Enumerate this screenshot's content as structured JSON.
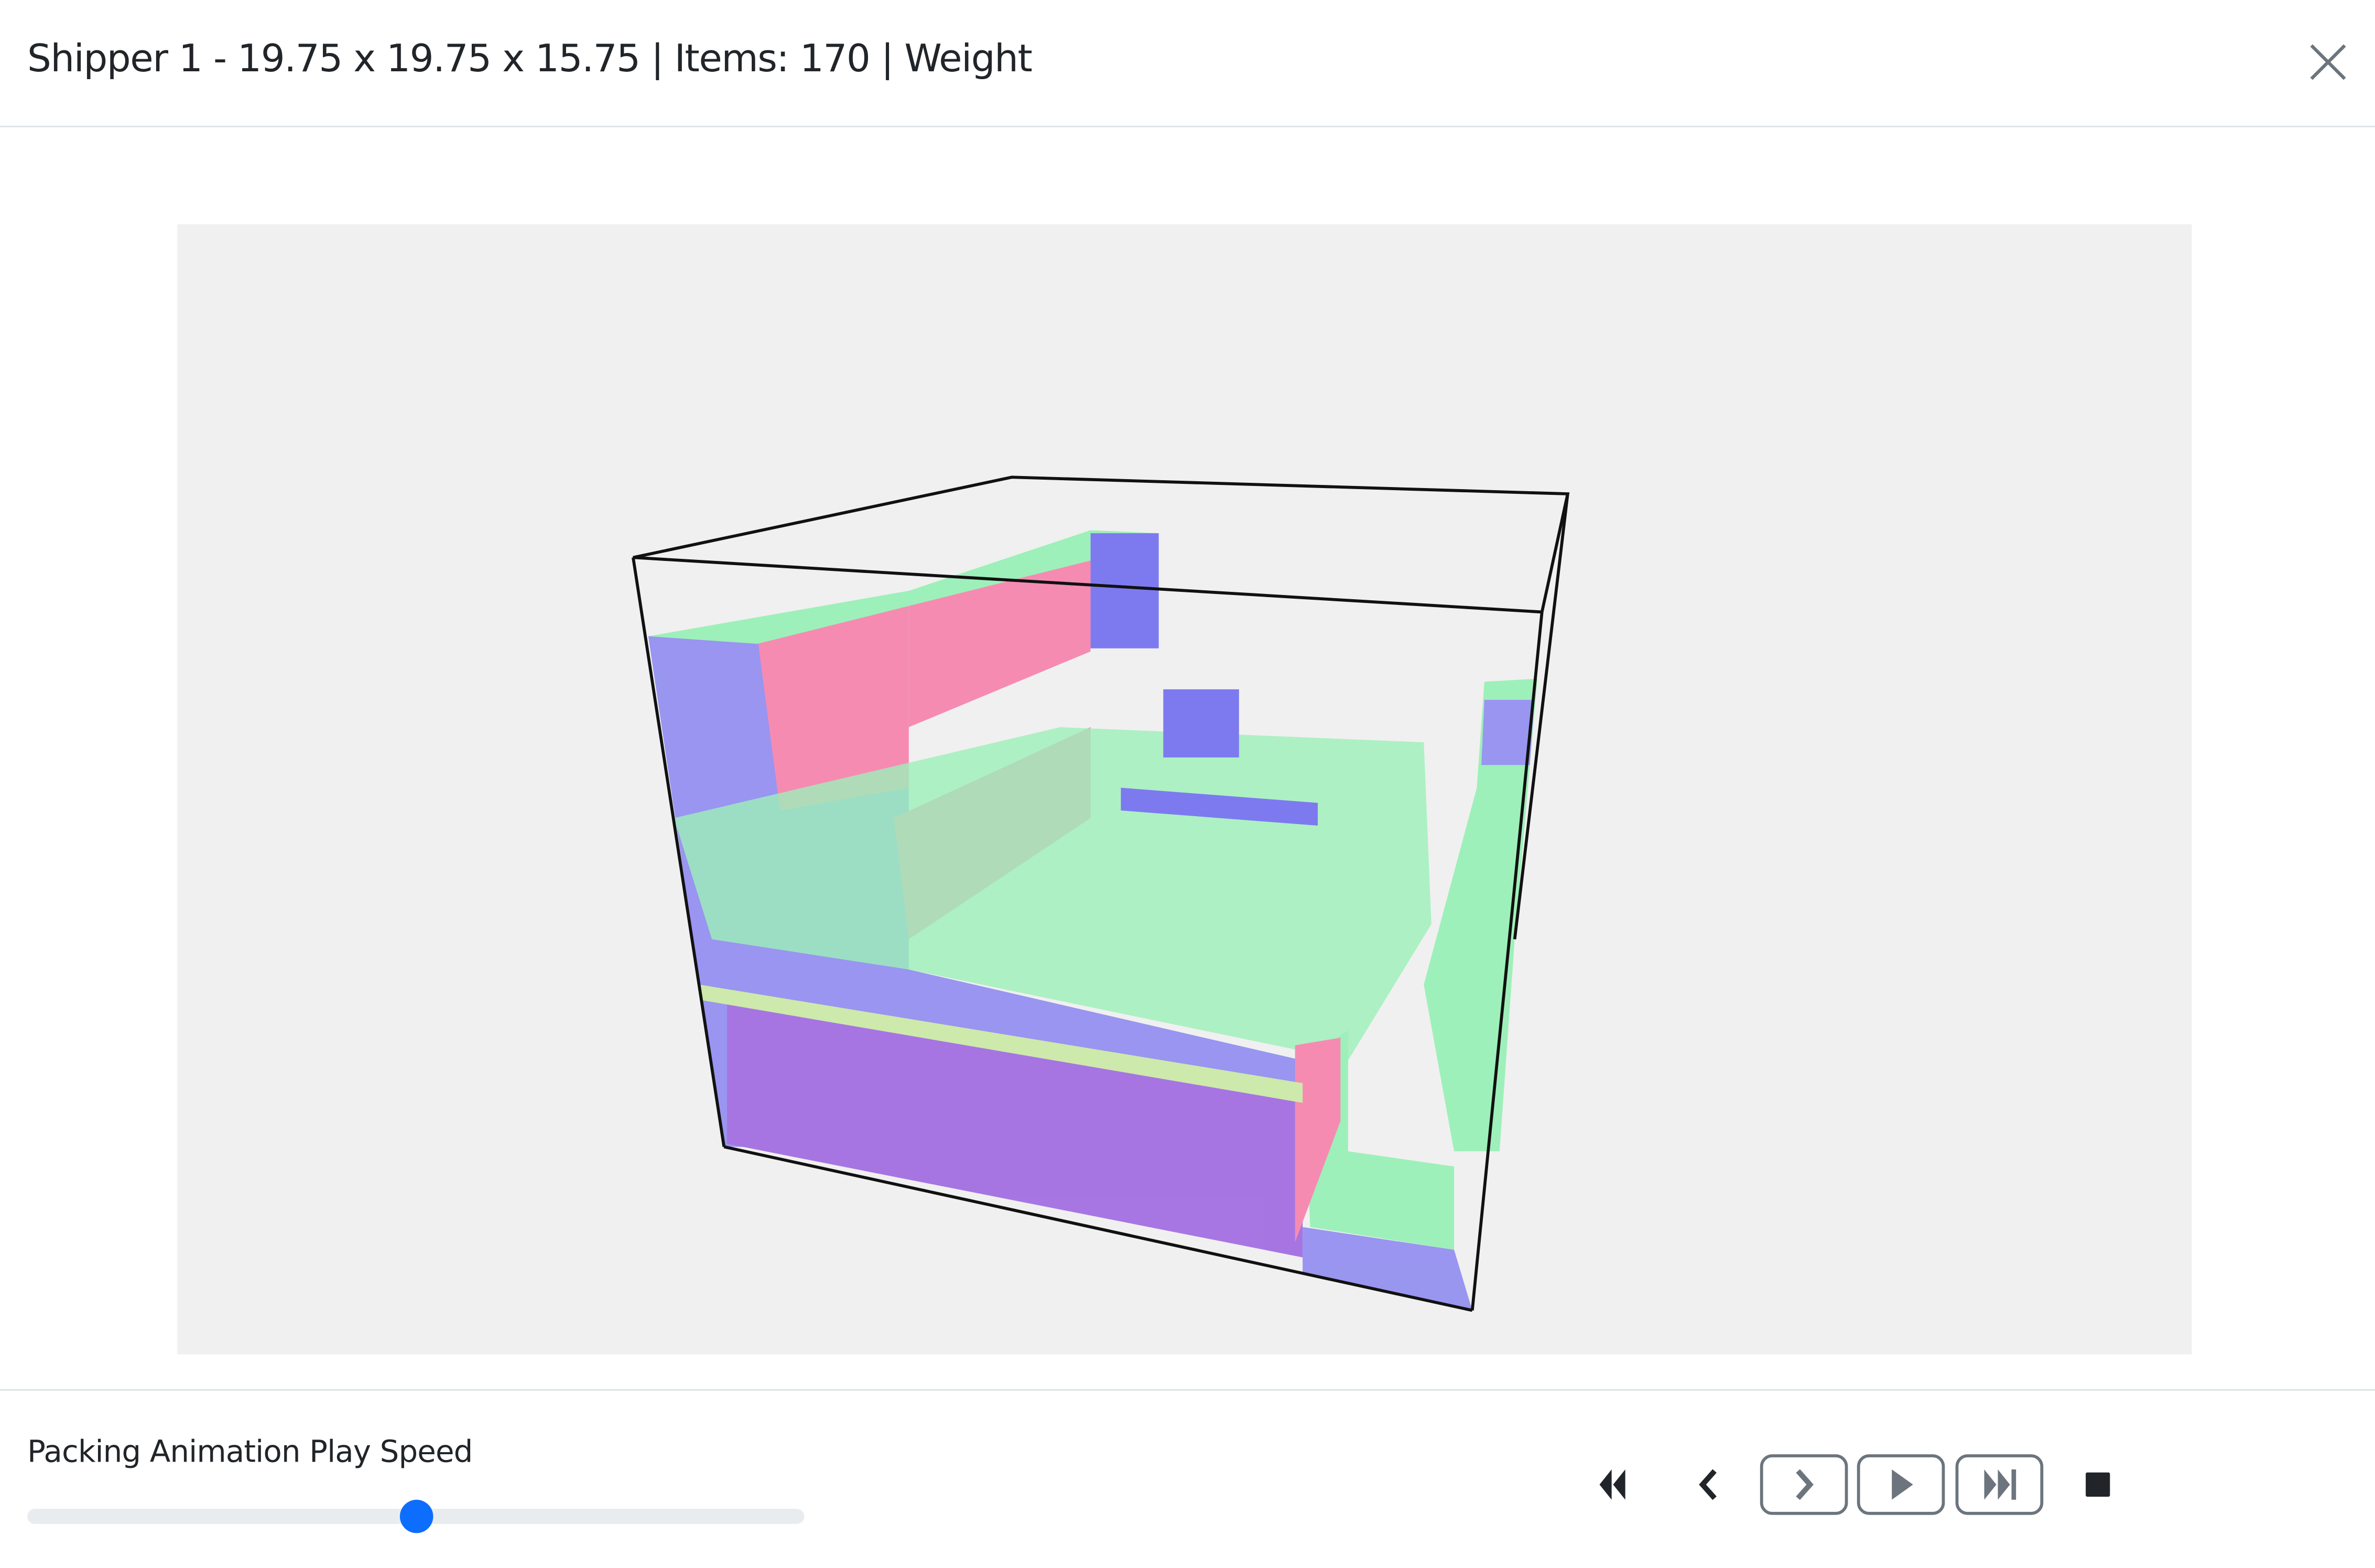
{
  "header": {
    "title": "Shipper 1 - 19.75 x 19.75 x 15.75 | Items: 170 | Weight",
    "close_icon": "close-x-icon"
  },
  "viewer": {
    "background": "#f0f0f0",
    "item_colors": [
      "#f87aa8",
      "#8a86f0",
      "#8ff0b0",
      "#6a66f0"
    ]
  },
  "footer": {
    "speed_label": "Packing Animation Play Speed",
    "speed_value": 0.5,
    "slider_color": "#0d6efd",
    "controls": [
      {
        "name": "first-step",
        "icon": "skip-start-icon"
      },
      {
        "name": "previous-step",
        "icon": "chevron-left-icon"
      },
      {
        "name": "next-step",
        "icon": "chevron-right-icon"
      },
      {
        "name": "play",
        "icon": "play-icon"
      },
      {
        "name": "last-step",
        "icon": "skip-end-icon"
      },
      {
        "name": "stop",
        "icon": "stop-icon"
      }
    ]
  }
}
